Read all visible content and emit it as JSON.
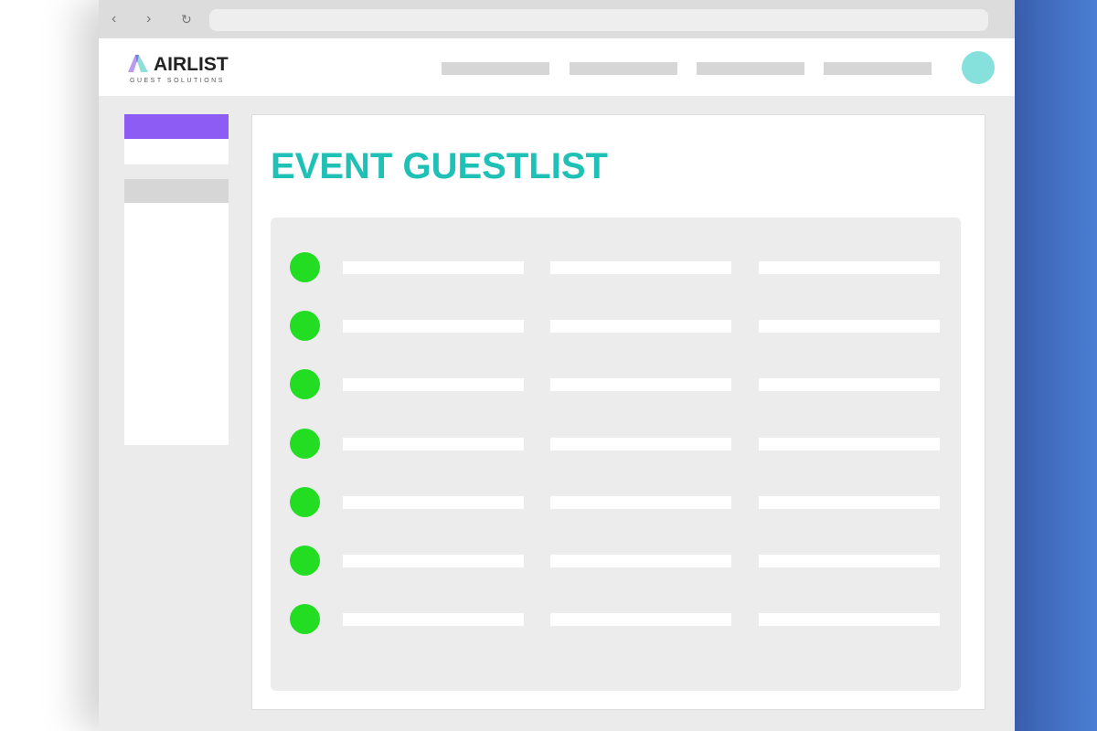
{
  "brand": {
    "name": "AIRLIST",
    "tagline": "GUEST SOLUTIONS"
  },
  "browser": {
    "back_icon": "chevron-left-icon",
    "forward_icon": "chevron-right-icon",
    "reload_icon": "reload-icon",
    "url": ""
  },
  "main": {
    "title": "EVENT GUESTLIST",
    "row_count": 7
  },
  "colors": {
    "accent_title": "#1fc1b6",
    "sidebar_active": "#8c5cf5",
    "status_dot": "#22dd22",
    "avatar": "#86e0dc",
    "background_right": "#4a7ed4"
  }
}
